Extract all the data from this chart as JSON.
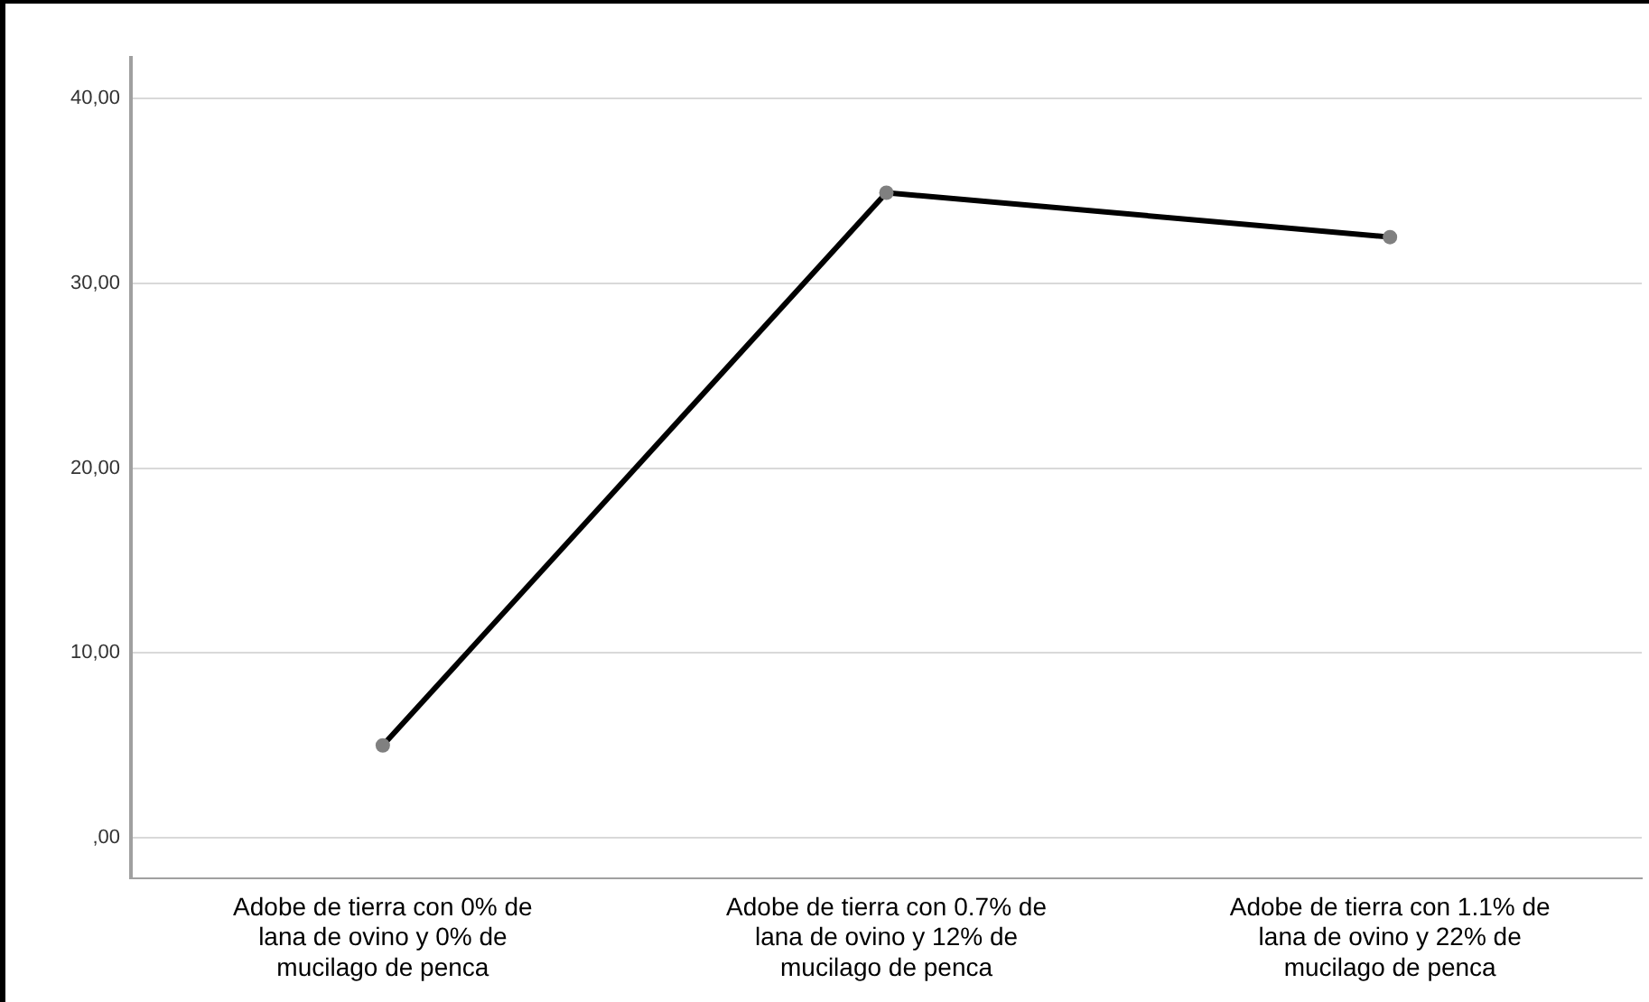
{
  "chart_data": {
    "type": "line",
    "categories": [
      "Adobe de tierra con 0% de lana de ovino y 0% de mucilago de penca",
      "Adobe de tierra con 0.7% de lana de ovino y 12% de mucilago de penca",
      "Adobe de tierra con 1.1% de lana de ovino y 22% de mucilago de penca"
    ],
    "series": [
      {
        "color": "#000000",
        "values": [
          5.0,
          34.9,
          32.5
        ]
      }
    ],
    "ylim": [
      -2.2,
      42.2
    ],
    "yticks": [
      {
        "value": 0,
        "label": ",00"
      },
      {
        "value": 10,
        "label": "10,00"
      },
      {
        "value": 20,
        "label": "20,00"
      },
      {
        "value": 30,
        "label": "30,00"
      },
      {
        "value": 40,
        "label": "40,00"
      }
    ],
    "grid": "y",
    "legend": false,
    "marker": "circle",
    "line_style": "solid"
  }
}
